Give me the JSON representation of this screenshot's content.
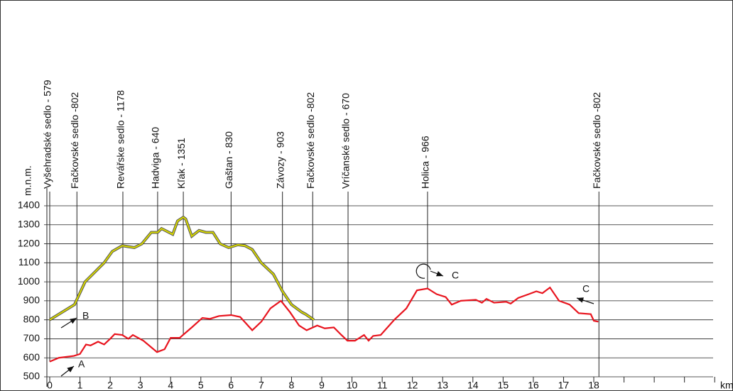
{
  "chart_data": {
    "type": "line",
    "y_label": "m.n.m.",
    "x_label": "km",
    "xlim": [
      0,
      18
    ],
    "ylim": [
      500,
      1400
    ],
    "xticks": [
      0,
      1,
      2,
      3,
      4,
      5,
      6,
      7,
      8,
      9,
      10,
      11,
      12,
      13,
      14,
      15,
      16,
      17,
      18
    ],
    "yticks": [
      500,
      600,
      700,
      800,
      900,
      1000,
      1100,
      1200,
      1300,
      1400
    ],
    "grid": true,
    "series": [
      {
        "name": "A",
        "color": "#e8141e",
        "x": [
          0,
          0.3,
          0.8,
          1.0,
          1.2,
          1.35,
          1.6,
          1.8,
          2.0,
          2.15,
          2.4,
          2.6,
          2.75,
          3.1,
          3.55,
          3.8,
          4.0,
          4.3,
          4.7,
          5.05,
          5.3,
          5.6,
          6.0,
          6.3,
          6.5,
          6.7,
          7.0,
          7.3,
          7.65,
          7.95,
          8.25,
          8.5,
          8.85,
          9.1,
          9.4,
          9.65,
          9.85,
          10.1,
          10.4,
          10.55,
          10.7,
          10.95,
          11.4,
          11.8,
          12.15,
          12.5,
          12.8,
          13.1,
          13.3,
          13.6,
          14.1,
          14.3,
          14.45,
          14.7,
          15.1,
          15.25,
          15.5,
          15.85,
          16.1,
          16.3,
          16.55,
          16.85,
          17.2,
          17.5,
          17.9,
          18.0,
          18.15
        ],
        "values": [
          580,
          600,
          610,
          620,
          670,
          665,
          685,
          670,
          700,
          725,
          720,
          700,
          720,
          690,
          630,
          645,
          705,
          705,
          760,
          810,
          805,
          820,
          825,
          815,
          780,
          745,
          790,
          860,
          900,
          840,
          770,
          745,
          770,
          755,
          760,
          720,
          690,
          690,
          720,
          690,
          715,
          720,
          800,
          860,
          955,
          965,
          935,
          920,
          880,
          900,
          905,
          890,
          910,
          890,
          895,
          885,
          915,
          935,
          950,
          940,
          970,
          900,
          880,
          835,
          830,
          795,
          790
        ]
      },
      {
        "name": "B",
        "color": "#d8d800",
        "x": [
          0,
          0.82,
          1.17,
          1.8,
          2.07,
          2.4,
          2.8,
          3.05,
          3.36,
          3.57,
          3.7,
          4.07,
          4.23,
          4.42,
          4.5,
          4.7,
          4.94,
          5.17,
          5.4,
          5.64,
          5.92,
          6.23,
          6.46,
          6.7,
          7.0,
          7.4,
          7.7,
          8.0,
          8.34,
          8.46,
          8.74
        ],
        "values": [
          800,
          880,
          1000,
          1100,
          1160,
          1190,
          1180,
          1200,
          1260,
          1260,
          1280,
          1250,
          1320,
          1340,
          1330,
          1240,
          1270,
          1260,
          1260,
          1200,
          1180,
          1195,
          1190,
          1170,
          1100,
          1040,
          950,
          880,
          840,
          830,
          800
        ]
      }
    ],
    "annotations": [
      {
        "x": 0,
        "label": "Vyšehradské sedlo - 579"
      },
      {
        "x": 0.9,
        "label": "Fačkovské sedlo -802"
      },
      {
        "x": 2.42,
        "label": "Revářske sedlo - 1178"
      },
      {
        "x": 3.57,
        "label": "Hadviga - 640"
      },
      {
        "x": 4.42,
        "label": "Kľak - 1351"
      },
      {
        "x": 6.0,
        "label": "Gaštan - 830"
      },
      {
        "x": 7.7,
        "label": "Závozy - 903"
      },
      {
        "x": 8.7,
        "label": "Fačkovské sedlo -802"
      },
      {
        "x": 9.87,
        "label": "Vríčanské sedlo - 670"
      },
      {
        "x": 12.5,
        "label": "Holica - 966"
      },
      {
        "x": 18.17,
        "label": "Fačkovské sedlo -802"
      }
    ],
    "point_labels": [
      "A",
      "B",
      "C",
      "C"
    ]
  }
}
